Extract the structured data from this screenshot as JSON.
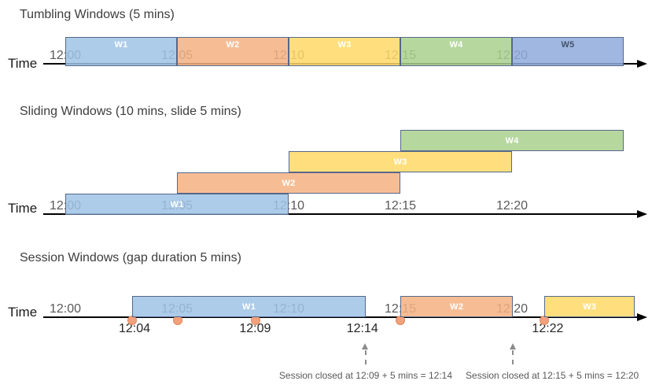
{
  "time_axis_label": "Time",
  "colors": {
    "blue": "#9DC3E6",
    "orange": "#F4B183",
    "yellow": "#FFD966",
    "green": "#A9D18E",
    "blue_dark": "#8FAADC",
    "window_border": "#56688A",
    "event_dot": "#F2A17C",
    "event_dot_border": "#E08C5F",
    "axis": "#000000",
    "tick_label": "#595959",
    "annotation": "#595959",
    "arrow_gray": "#8C8C8C",
    "w5_label": "#44546A"
  },
  "sections": [
    {
      "id": "tumbling",
      "title": "Tumbling Windows (5 mins)",
      "ticks": [
        {
          "label": "12:00",
          "min": 0
        },
        {
          "label": "12:05",
          "min": 5
        },
        {
          "label": "12:10",
          "min": 10
        },
        {
          "label": "12:15",
          "min": 15
        },
        {
          "label": "12:20",
          "min": 20
        }
      ],
      "windows": [
        {
          "label": "W1",
          "start_min": 0,
          "end_min": 5,
          "color": "blue"
        },
        {
          "label": "W2",
          "start_min": 5,
          "end_min": 10,
          "color": "orange"
        },
        {
          "label": "W3",
          "start_min": 10,
          "end_min": 15,
          "color": "yellow"
        },
        {
          "label": "W4",
          "start_min": 15,
          "end_min": 20,
          "color": "green"
        },
        {
          "label": "W5",
          "start_min": 20,
          "end_min": 25,
          "color": "blue_dark",
          "label_color": "#44546A"
        }
      ]
    },
    {
      "id": "sliding",
      "title": "Sliding Windows (10 mins, slide 5 mins)",
      "ticks": [
        {
          "label": "12:00",
          "min": 0
        },
        {
          "label": "12:05",
          "min": 5
        },
        {
          "label": "12:10",
          "min": 10
        },
        {
          "label": "12:15",
          "min": 15
        },
        {
          "label": "12:20",
          "min": 20
        }
      ],
      "windows": [
        {
          "label": "W1",
          "start_min": 0,
          "end_min": 10,
          "color": "blue",
          "row": 0
        },
        {
          "label": "W2",
          "start_min": 5,
          "end_min": 15,
          "color": "orange",
          "row": 1
        },
        {
          "label": "W3",
          "start_min": 10,
          "end_min": 20,
          "color": "yellow",
          "row": 2
        },
        {
          "label": "W4",
          "start_min": 15,
          "end_min": 25,
          "color": "green",
          "row": 3
        }
      ]
    },
    {
      "id": "session",
      "title": "Session Windows (gap duration 5 mins)",
      "ticks": [
        {
          "label": "12:00",
          "min": 0
        },
        {
          "label": "12:05",
          "min": 5
        },
        {
          "label": "12:10",
          "min": 10
        },
        {
          "label": "12:15",
          "min": 15
        },
        {
          "label": "12:20",
          "min": 20
        }
      ],
      "windows": [
        {
          "label": "W1",
          "start_min": 3,
          "end_min": 13.45,
          "color": "blue"
        },
        {
          "label": "W2",
          "start_min": 15,
          "end_min": 20.05,
          "color": "orange"
        },
        {
          "label": "W3",
          "start_min": 21.45,
          "end_min": 25.5,
          "color": "yellow"
        }
      ],
      "events": [
        {
          "min": 3
        },
        {
          "min": 5.03
        },
        {
          "min": 8.52
        },
        {
          "min": 15
        },
        {
          "min": 21.44
        }
      ],
      "event_labels": [
        {
          "label": "12:04",
          "min": 3.1
        },
        {
          "label": "12:09",
          "min": 8.5
        },
        {
          "label": "12:14",
          "min": 13.3
        },
        {
          "label": "12:22",
          "min": 21.6
        }
      ],
      "callouts": [
        {
          "text": "Session closed at 12:09 + 5 mins = 12:14",
          "arrow_min": 13.45,
          "text_min": 13.45
        },
        {
          "text": "Session closed at 12:15 + 5 mins = 12:20",
          "arrow_min": 20.05,
          "text_min": 21.8
        }
      ]
    }
  ]
}
